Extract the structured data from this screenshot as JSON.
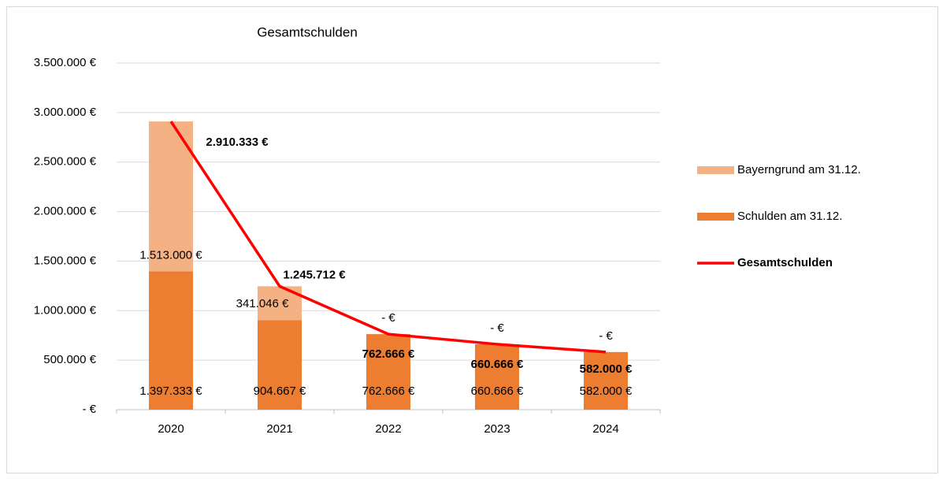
{
  "chart_data": {
    "type": "bar",
    "title": "Gesamtschulden",
    "categories": [
      "2020",
      "2021",
      "2022",
      "2023",
      "2024"
    ],
    "series": [
      {
        "name": "Schulden am 31.12.",
        "color": "#ed7d31",
        "values": [
          1397333,
          904667,
          762666,
          660666,
          582000
        ],
        "value_labels": [
          "1.397.333 €",
          "904.667 €",
          "762.666 €",
          "660.666 €",
          "582.000 €"
        ]
      },
      {
        "name": "Bayerngrund am 31.12.",
        "color": "#f4b183",
        "values": [
          1513000,
          341046,
          0,
          0,
          0
        ],
        "value_labels": [
          "1.513.000 €",
          "341.046 €",
          "-  €",
          "-  €",
          "-  €"
        ]
      },
      {
        "name": "Gesamtschulden",
        "type": "line",
        "color": "#ff0000",
        "values": [
          2910333,
          1245712,
          762666,
          660666,
          582000
        ],
        "value_labels": [
          "2.910.333 €",
          "1.245.712 €",
          "762.666 €",
          "660.666 €",
          "582.000 €"
        ]
      }
    ],
    "stacked": true,
    "ylim": [
      0,
      3500000
    ],
    "yticks": [
      {
        "value": 0,
        "label": "-  €"
      },
      {
        "value": 500000,
        "label": "500.000 €"
      },
      {
        "value": 1000000,
        "label": "1.000.000 €"
      },
      {
        "value": 1500000,
        "label": "1.500.000 €"
      },
      {
        "value": 2000000,
        "label": "2.000.000 €"
      },
      {
        "value": 2500000,
        "label": "2.500.000 €"
      },
      {
        "value": 3000000,
        "label": "3.000.000 €"
      },
      {
        "value": 3500000,
        "label": "3.500.000 €"
      }
    ],
    "grid": true,
    "legend": "right"
  }
}
